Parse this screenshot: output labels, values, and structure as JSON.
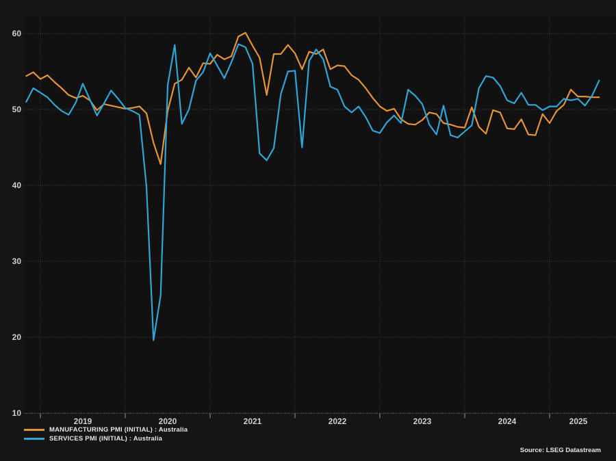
{
  "chart_data": {
    "type": "line",
    "title": "",
    "frequency": "monthly",
    "x_start": "2018-10",
    "x_end": "2025-07",
    "x_tick_labels": [
      "2019",
      "2020",
      "2021",
      "2022",
      "2023",
      "2024",
      "2025"
    ],
    "y_ticks": [
      60,
      50,
      40,
      30,
      20,
      10
    ],
    "ylim": [
      10,
      62
    ],
    "grid": "dotted",
    "legend_position": "bottom-left",
    "source": "Source: LSEG Datastream",
    "colors": {
      "manufacturing": "#E79434",
      "services": "#2EA7D8"
    },
    "series": [
      {
        "name": "MANUFACTURING PMI (INITIAL) : Australia",
        "color": "#E79434",
        "values": [
          54.4,
          54.9,
          54.0,
          54.5,
          53.6,
          52.8,
          51.9,
          51.5,
          51.8,
          51.2,
          49.9,
          50.7,
          50.5,
          50.3,
          50.1,
          50.2,
          50.4,
          49.5,
          45.6,
          42.8,
          49.8,
          53.4,
          53.9,
          55.5,
          54.2,
          56.1,
          56.0,
          57.2,
          56.6,
          57.0,
          59.6,
          60.1,
          58.4,
          56.8,
          51.9,
          57.3,
          57.3,
          58.5,
          57.4,
          55.3,
          57.6,
          57.3,
          57.9,
          55.3,
          55.8,
          55.7,
          54.5,
          53.9,
          52.8,
          51.5,
          50.4,
          49.8,
          50.1,
          48.7,
          48.1,
          48.0,
          48.6,
          49.6,
          49.4,
          48.2,
          48.0,
          47.7,
          47.6,
          50.3,
          47.7,
          46.8,
          49.9,
          49.6,
          47.5,
          47.4,
          48.7,
          46.7,
          46.6,
          49.4,
          48.2,
          49.8,
          50.6,
          52.6,
          51.7,
          51.7,
          51.6,
          51.6
        ]
      },
      {
        "name": "SERVICES PMI (INITIAL) : Australia",
        "color": "#2EA7D8",
        "values": [
          51.0,
          52.8,
          52.2,
          51.6,
          50.6,
          49.8,
          49.3,
          50.9,
          53.4,
          51.3,
          49.2,
          50.8,
          52.5,
          51.4,
          50.2,
          49.8,
          49.3,
          39.8,
          19.6,
          25.5,
          53.2,
          58.5,
          48.1,
          50.0,
          53.8,
          54.9,
          57.4,
          55.8,
          54.1,
          56.2,
          58.6,
          58.2,
          56.0,
          44.2,
          43.3,
          44.9,
          52.0,
          55.0,
          55.1,
          45.0,
          56.4,
          57.9,
          56.6,
          53.0,
          52.6,
          50.4,
          49.6,
          50.4,
          49.0,
          47.2,
          46.9,
          48.3,
          49.2,
          48.2,
          52.6,
          51.8,
          50.7,
          48.0,
          46.7,
          50.5,
          46.6,
          46.3,
          47.1,
          47.9,
          52.8,
          54.4,
          54.2,
          53.1,
          51.2,
          50.8,
          52.2,
          50.6,
          50.6,
          49.9,
          50.4,
          50.4,
          51.4,
          51.2,
          51.4,
          50.5,
          51.8,
          53.8
        ]
      }
    ]
  }
}
